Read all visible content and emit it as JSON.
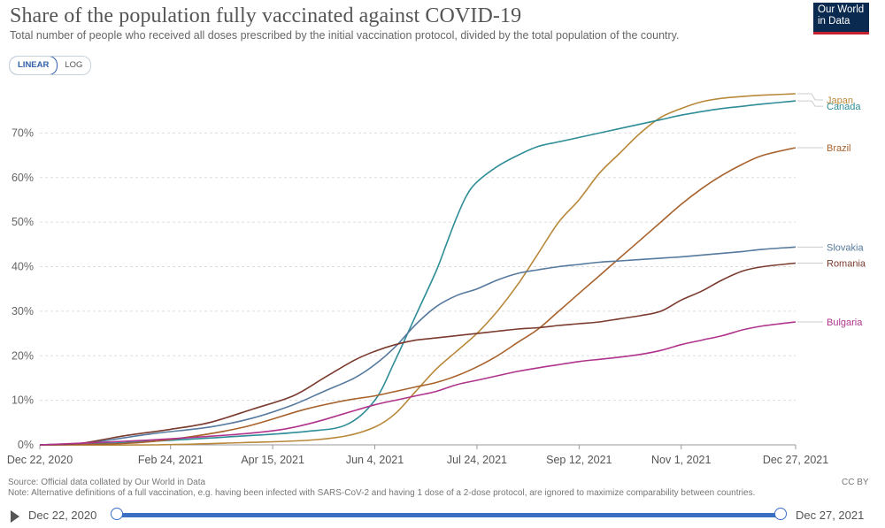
{
  "header": {
    "title": "Share of the population fully vaccinated against COVID-19",
    "subtitle": "Total number of people who received all doses prescribed by the initial vaccination protocol, divided by the total population of the country.",
    "logo_line1": "Our World",
    "logo_line2": "in Data"
  },
  "controls": {
    "linear_label": "LINEAR",
    "log_label": "LOG",
    "active": "LINEAR"
  },
  "footer": {
    "source": "Source: Official data collated by Our World in Data",
    "note": "Note: Alternative definitions of a full vaccination, e.g. having been infected with SARS-CoV-2 and having 1 dose of a 2-dose protocol, are ignored to maximize comparability between countries.",
    "license": "CC BY"
  },
  "timeline": {
    "start_label": "Dec 22, 2020",
    "end_label": "Dec 27, 2021"
  },
  "colors": {
    "Japan": "#b8883a",
    "Canada": "#2e8d97",
    "Brazil": "#a8622d",
    "Slovakia": "#56799e",
    "Romania": "#7a3a2e",
    "Bulgaria": "#b0338c"
  },
  "chart_data": {
    "type": "line",
    "title": "Share of the population fully vaccinated against COVID-19",
    "x_tick_labels": [
      "Dec 22, 2020",
      "Feb 24, 2021",
      "Apr 15, 2021",
      "Jun 4, 2021",
      "Jul 24, 2021",
      "Sep 12, 2021",
      "Nov 1, 2021",
      "Dec 27, 2021"
    ],
    "x_tick_dates": [
      "2020-12-22",
      "2021-02-24",
      "2021-04-15",
      "2021-06-04",
      "2021-07-24",
      "2021-09-12",
      "2021-11-01",
      "2021-12-27"
    ],
    "xlim": [
      "2020-12-22",
      "2021-12-27"
    ],
    "y_tick_labels": [
      "0%",
      "10%",
      "20%",
      "30%",
      "40%",
      "50%",
      "60%",
      "70%"
    ],
    "y_ticks": [
      0,
      10,
      20,
      30,
      40,
      50,
      60,
      70
    ],
    "ylim": [
      0,
      80
    ],
    "y_unit": "%",
    "grid": "horizontal dashed",
    "legend": "right, labels at line ends",
    "series": [
      {
        "name": "Japan",
        "x": [
          "2020-12-22",
          "2021-02-17",
          "2021-03-31",
          "2021-05-01",
          "2021-05-21",
          "2021-06-04",
          "2021-06-14",
          "2021-06-24",
          "2021-07-04",
          "2021-07-14",
          "2021-07-24",
          "2021-08-03",
          "2021-08-13",
          "2021-08-23",
          "2021-09-02",
          "2021-09-12",
          "2021-09-22",
          "2021-10-02",
          "2021-10-12",
          "2021-10-22",
          "2021-11-01",
          "2021-11-11",
          "2021-11-21",
          "2021-12-01",
          "2021-12-11",
          "2021-12-27"
        ],
        "y": [
          0,
          0,
          0.5,
          1,
          2,
          4,
          7,
          12,
          17,
          21,
          25,
          30,
          36,
          43,
          50,
          55,
          61,
          65.5,
          70,
          73.5,
          75.5,
          77,
          77.8,
          78.2,
          78.5,
          78.8
        ]
      },
      {
        "name": "Canada",
        "x": [
          "2020-12-22",
          "2021-02-01",
          "2021-04-01",
          "2021-05-01",
          "2021-05-21",
          "2021-06-04",
          "2021-06-14",
          "2021-06-24",
          "2021-07-04",
          "2021-07-09",
          "2021-07-14",
          "2021-07-19",
          "2021-07-24",
          "2021-08-03",
          "2021-08-13",
          "2021-08-23",
          "2021-09-02",
          "2021-09-12",
          "2021-09-22",
          "2021-10-02",
          "2021-10-12",
          "2021-10-22",
          "2021-11-01",
          "2021-11-11",
          "2021-11-21",
          "2021-12-01",
          "2021-12-11",
          "2021-12-27"
        ],
        "y": [
          0,
          0.5,
          2,
          3,
          4.5,
          10,
          19,
          29,
          39,
          45,
          51,
          56,
          59,
          62.5,
          65,
          67,
          68,
          69,
          70,
          71,
          72,
          73,
          74,
          74.8,
          75.5,
          76,
          76.5,
          77.2
        ]
      },
      {
        "name": "Brazil",
        "x": [
          "2020-12-22",
          "2021-02-01",
          "2021-03-01",
          "2021-04-01",
          "2021-05-01",
          "2021-05-21",
          "2021-06-04",
          "2021-06-14",
          "2021-06-24",
          "2021-07-04",
          "2021-07-14",
          "2021-07-24",
          "2021-08-03",
          "2021-08-13",
          "2021-08-23",
          "2021-09-02",
          "2021-09-12",
          "2021-09-22",
          "2021-10-02",
          "2021-10-12",
          "2021-10-22",
          "2021-11-01",
          "2021-11-11",
          "2021-11-21",
          "2021-12-01",
          "2021-12-11",
          "2021-12-27"
        ],
        "y": [
          0,
          0.3,
          1.5,
          4,
          8,
          10,
          11,
          12,
          13,
          14,
          15.5,
          17.5,
          20,
          23,
          26,
          30,
          34,
          38,
          42,
          46,
          50,
          54,
          57.5,
          60.5,
          63,
          65,
          66.7
        ]
      },
      {
        "name": "Slovakia",
        "x": [
          "2020-12-22",
          "2021-01-15",
          "2021-02-15",
          "2021-03-15",
          "2021-04-05",
          "2021-04-25",
          "2021-05-10",
          "2021-05-25",
          "2021-06-04",
          "2021-06-14",
          "2021-06-24",
          "2021-07-04",
          "2021-07-14",
          "2021-07-24",
          "2021-08-03",
          "2021-08-13",
          "2021-08-23",
          "2021-09-02",
          "2021-09-12",
          "2021-09-22",
          "2021-10-02",
          "2021-10-12",
          "2021-10-22",
          "2021-11-01",
          "2021-11-11",
          "2021-11-21",
          "2021-12-01",
          "2021-12-11",
          "2021-12-27"
        ],
        "y": [
          0,
          0.5,
          2.5,
          4,
          6,
          9,
          12,
          15,
          18,
          22,
          27,
          31,
          33.5,
          35,
          37,
          38.5,
          39.3,
          40,
          40.5,
          41,
          41.3,
          41.6,
          41.9,
          42.2,
          42.6,
          43,
          43.4,
          43.9,
          44.4
        ]
      },
      {
        "name": "Romania",
        "x": [
          "2020-12-22",
          "2021-01-10",
          "2021-02-01",
          "2021-02-24",
          "2021-03-15",
          "2021-04-05",
          "2021-04-25",
          "2021-05-10",
          "2021-05-25",
          "2021-06-04",
          "2021-06-14",
          "2021-06-24",
          "2021-07-04",
          "2021-07-14",
          "2021-07-24",
          "2021-08-03",
          "2021-08-13",
          "2021-08-23",
          "2021-09-02",
          "2021-09-12",
          "2021-09-22",
          "2021-10-02",
          "2021-10-12",
          "2021-10-22",
          "2021-11-01",
          "2021-11-11",
          "2021-11-21",
          "2021-12-01",
          "2021-12-11",
          "2021-12-27"
        ],
        "y": [
          0,
          0.3,
          2,
          3.5,
          5,
          8,
          11,
          15,
          19,
          21,
          22.5,
          23.5,
          24,
          24.5,
          25,
          25.5,
          26,
          26.3,
          26.8,
          27.2,
          27.6,
          28.3,
          29,
          30,
          32.5,
          34.5,
          37,
          39,
          40,
          40.8
        ]
      },
      {
        "name": "Bulgaria",
        "x": [
          "2020-12-22",
          "2021-02-01",
          "2021-03-01",
          "2021-04-01",
          "2021-04-20",
          "2021-05-05",
          "2021-05-20",
          "2021-06-04",
          "2021-06-14",
          "2021-06-24",
          "2021-07-04",
          "2021-07-14",
          "2021-07-24",
          "2021-08-03",
          "2021-08-13",
          "2021-08-23",
          "2021-09-02",
          "2021-09-12",
          "2021-09-22",
          "2021-10-02",
          "2021-10-12",
          "2021-10-22",
          "2021-11-01",
          "2021-11-11",
          "2021-11-21",
          "2021-12-01",
          "2021-12-11",
          "2021-12-27"
        ],
        "y": [
          0,
          0.8,
          1.5,
          2.5,
          3.5,
          5,
          7,
          9,
          10,
          11,
          12,
          13.5,
          14.5,
          15.5,
          16.5,
          17.3,
          18,
          18.7,
          19.2,
          19.7,
          20.3,
          21.2,
          22.5,
          23.5,
          24.5,
          25.8,
          26.7,
          27.6
        ]
      }
    ]
  }
}
